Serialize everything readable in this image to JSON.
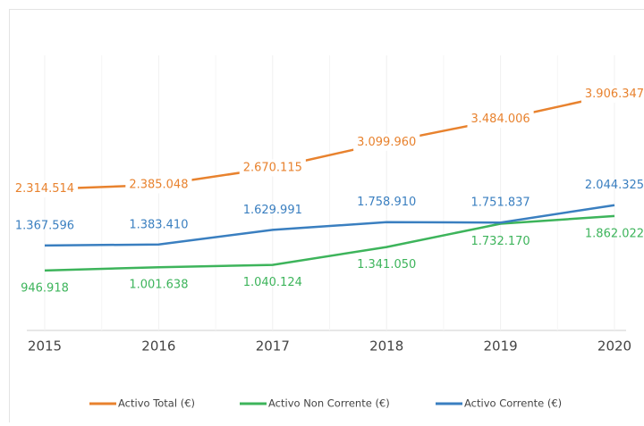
{
  "chart_data": {
    "type": "line",
    "categories": [
      "2015",
      "2016",
      "2017",
      "2018",
      "2019",
      "2020"
    ],
    "ylim": [
      0,
      4500000
    ],
    "series": [
      {
        "name": "Activo Total  (€)",
        "color": "#e8822e",
        "values": [
          2314514,
          2385048,
          2670115,
          3099960,
          3484006,
          3906347
        ],
        "value_labels": [
          "2.314.514",
          "2.385.048",
          "2.670.115",
          "3.099.960",
          "3.484.006",
          "3.906.347"
        ]
      },
      {
        "name": "Activo Non Corrente (€)",
        "color": "#3db45b",
        "values": [
          946918,
          1001638,
          1040124,
          1341050,
          1732170,
          1862022
        ],
        "value_labels": [
          "946.918",
          "1.001.638",
          "1.040.124",
          "1.341.050",
          "1.732.170",
          "1.862.022"
        ]
      },
      {
        "name": "Activo Corrente (€)",
        "color": "#3a7fc0",
        "values": [
          1367596,
          1383410,
          1629991,
          1758910,
          1751837,
          2044325
        ],
        "value_labels": [
          "1.367.596",
          "1.383.410",
          "1.629.991",
          "1.758.910",
          "1.751.837",
          "2.044.325"
        ]
      }
    ]
  }
}
